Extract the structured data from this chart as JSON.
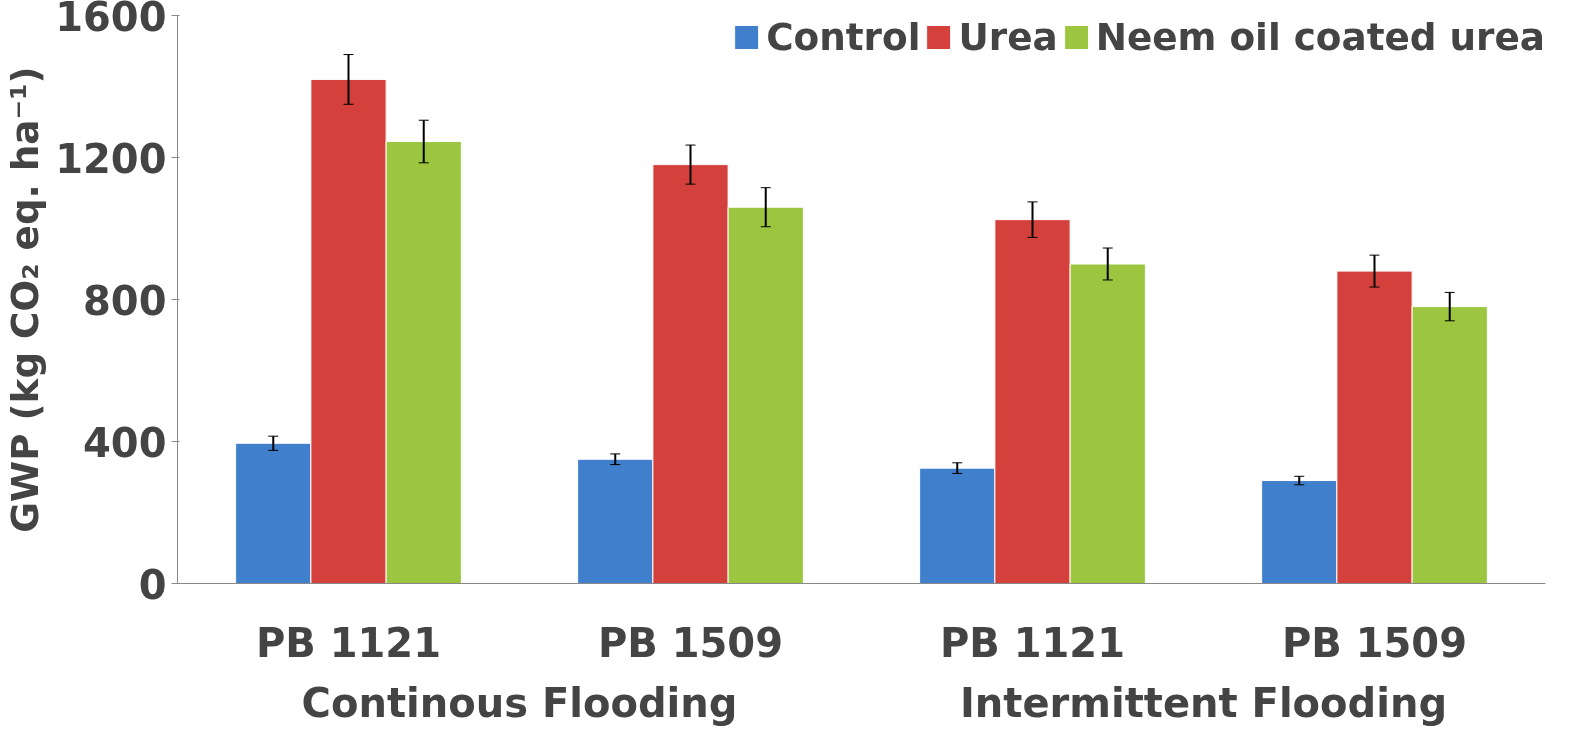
{
  "chart_data": {
    "type": "bar",
    "ylabel": "GWP (kg CO₂ eq. ha⁻¹)",
    "categories": [
      "PB 1121",
      "PB 1509",
      "PB 1121",
      "PB 1509"
    ],
    "annotations": [
      "Continous Flooding",
      "Intermittent Flooding"
    ],
    "series": [
      {
        "name": "Control",
        "color": "#3f7fcc",
        "values": [
          395,
          350,
          325,
          290
        ],
        "errors": [
          20,
          15,
          15,
          12
        ]
      },
      {
        "name": "Urea",
        "color": "#d4403c",
        "values": [
          1420,
          1180,
          1025,
          880
        ],
        "errors": [
          70,
          55,
          50,
          45
        ]
      },
      {
        "name": "Neem oil coated urea",
        "color": "#9cc63f",
        "values": [
          1245,
          1060,
          900,
          780
        ],
        "errors": [
          60,
          55,
          45,
          40
        ]
      }
    ],
    "ylim": [
      0,
      1600
    ],
    "yticks": [
      0,
      400,
      800,
      1200,
      1600
    ],
    "grid": false,
    "legend": "top right"
  }
}
